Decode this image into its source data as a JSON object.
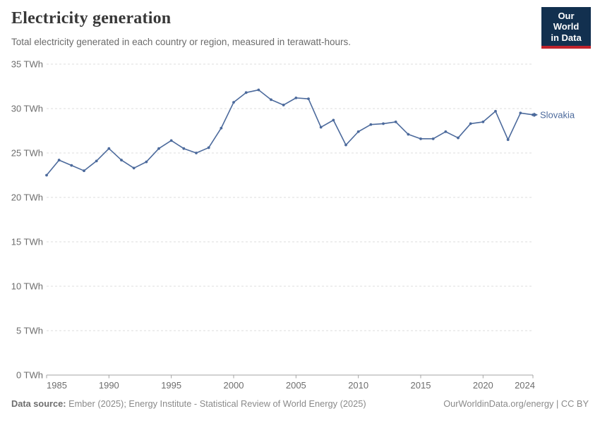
{
  "header": {
    "title": "Electricity generation",
    "subtitle": "Total electricity generated in each country or region, measured in terawatt-hours.",
    "logo": {
      "line1": "Our World",
      "line2": "in Data"
    }
  },
  "footer": {
    "source_label": "Data source:",
    "source_text": " Ember (2025); Energy Institute - Statistical Review of World Energy (2025)",
    "right_text": "OurWorldinData.org/energy | CC BY"
  },
  "chart_data": {
    "type": "line",
    "title": "Electricity generation",
    "unit": "TWh",
    "x": [
      1985,
      1986,
      1987,
      1988,
      1989,
      1990,
      1991,
      1992,
      1993,
      1994,
      1995,
      1996,
      1997,
      1998,
      1999,
      2000,
      2001,
      2002,
      2003,
      2004,
      2005,
      2006,
      2007,
      2008,
      2009,
      2010,
      2011,
      2012,
      2013,
      2014,
      2015,
      2016,
      2017,
      2018,
      2019,
      2020,
      2021,
      2022,
      2023,
      2024
    ],
    "series": [
      {
        "name": "Slovakia",
        "values": [
          22.5,
          24.2,
          23.6,
          23.0,
          24.1,
          25.5,
          24.2,
          23.3,
          24.0,
          25.5,
          26.4,
          25.5,
          25.0,
          25.6,
          27.8,
          30.7,
          31.8,
          32.1,
          31.0,
          30.4,
          31.2,
          31.1,
          27.9,
          28.7,
          25.9,
          27.4,
          28.2,
          28.3,
          28.5,
          27.1,
          26.6,
          26.6,
          27.4,
          26.7,
          28.3,
          28.5,
          29.7,
          26.5,
          29.5,
          29.3
        ]
      }
    ],
    "ylim": [
      0,
      35
    ],
    "y_ticks": [
      0,
      5,
      10,
      15,
      20,
      25,
      30,
      35
    ],
    "y_tick_suffix": " TWh",
    "x_ticks": [
      1985,
      1990,
      1995,
      2000,
      2005,
      2010,
      2015,
      2020,
      2024
    ],
    "grid": true,
    "legend_position": "end-of-line-label",
    "colors": {
      "line": "#4c6a9c",
      "axis_text": "#6e6e6e",
      "grid": "#dcdcdc",
      "axis": "#a3a3a3"
    }
  }
}
